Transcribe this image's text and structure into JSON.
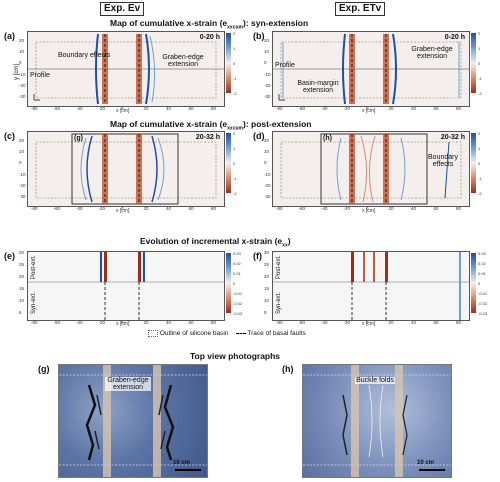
{
  "headers": {
    "left": "Exp. Ev",
    "right": "Exp. ETv"
  },
  "titles": {
    "syn": "Map of cumulative x-strain (e",
    "syn_sub": "xxcum",
    "syn_rest": "): syn-extension",
    "post": "Map of cumulative x-strain (e",
    "post_sub": "xxcum",
    "post_rest": "): post-extension",
    "evo": "Evolution of incremental x-strain (e",
    "evo_sub": "xx",
    "evo_rest": ")",
    "photos": "Top view photographs"
  },
  "panels": {
    "a": {
      "label": "(a)",
      "time": "0-20 h",
      "ann1": "Boundary effects",
      "ann2": "Graben-edge extension",
      "ann3": "Profile"
    },
    "b": {
      "label": "(b)",
      "time": "0-20 h",
      "ann1": "Graben-edge extension",
      "ann2": "Basin-margin extension",
      "ann3": "Profile"
    },
    "c": {
      "label": "(c)",
      "time": "20-32 h",
      "inset": "(g)"
    },
    "d": {
      "label": "(d)",
      "time": "20-32 h",
      "inset": "(h)",
      "ann1": "Boundary effects"
    },
    "e": {
      "label": "(e)",
      "post": "Post-ext.",
      "syn": "Syn-ext."
    },
    "f": {
      "label": "(f)",
      "post": "Post-ext.",
      "syn": "Syn-ext."
    },
    "g": {
      "label": "(g)",
      "ann": "Graben-edge extension",
      "scale": "10 cm"
    },
    "h": {
      "label": "(h)",
      "ann": "Buckle folds",
      "scale": "10 cm"
    }
  },
  "axes": {
    "xlabel": "x [cm]",
    "ylabel": "y [cm]",
    "tlabel": "Time [h]",
    "xticks": [
      "-80",
      "-60",
      "-40",
      "-20",
      "0",
      "20",
      "40",
      "60",
      "80"
    ],
    "yticks": [
      "20",
      "10",
      "0",
      "-10",
      "-20",
      "-30"
    ],
    "tticks": [
      "30",
      "25",
      "20",
      "15",
      "10",
      "5"
    ],
    "strain_label": "Strain e",
    "strain_sub": "xx",
    "cum_ticks": [
      "2",
      "1",
      "0",
      "-1",
      "-2"
    ],
    "inc_ticks": [
      "0.03",
      "0.02",
      "0.01",
      "0",
      "-0.01",
      "-0.02",
      "-0.03"
    ]
  },
  "legend": {
    "outline": "Outline of silicone basin",
    "faults": "Trace of basal faults"
  },
  "colors": {
    "extension": "#1f4fa0",
    "compression": "#9b2d1f",
    "background": "#f4efec"
  }
}
